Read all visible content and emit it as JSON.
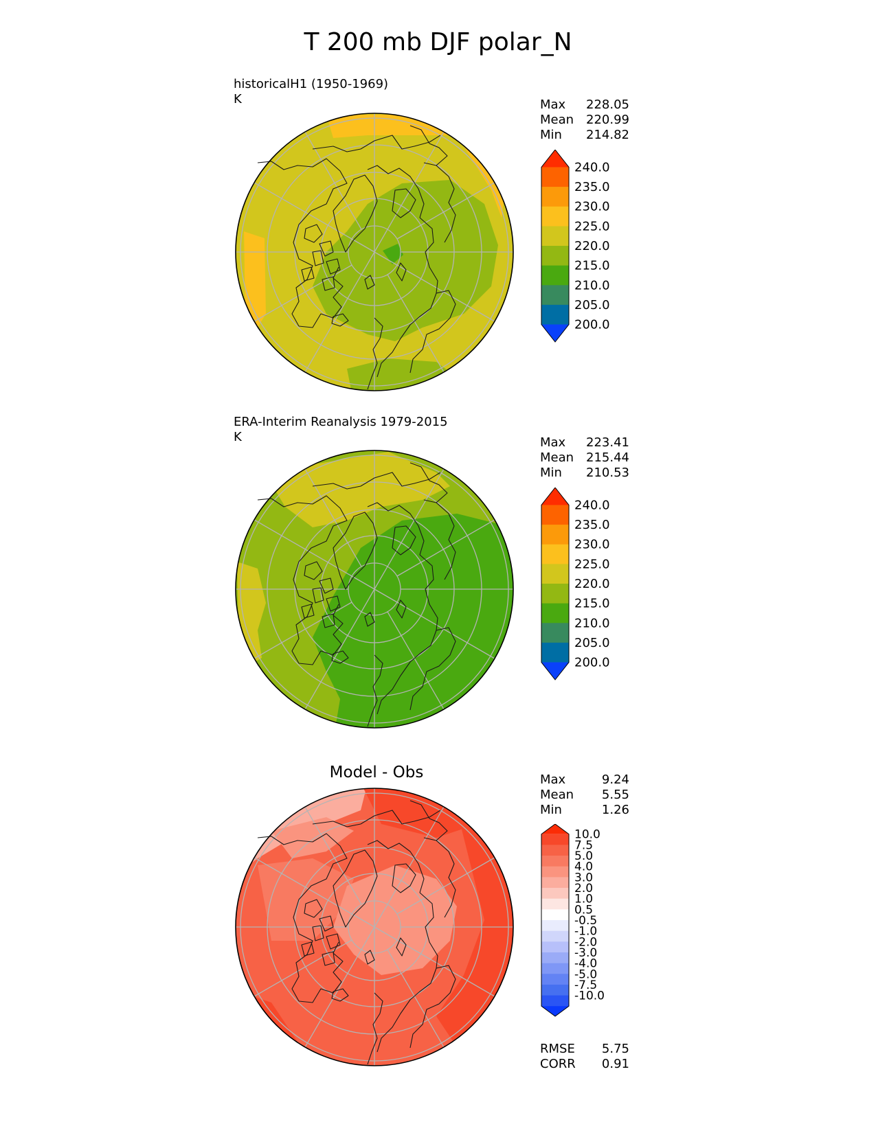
{
  "figure_title": "T 200 mb DJF polar_N",
  "colors": {
    "seq": [
      "#0a41fa",
      "#006ea4",
      "#388a5e",
      "#4aa910",
      "#93b813",
      "#d2c61d",
      "#fcc01d",
      "#fc9a0a",
      "#fd6300",
      "#ff2d00"
    ],
    "diff": [
      "#0a3afc",
      "#2a55f4",
      "#4670f0",
      "#6383f4",
      "#7f97f6",
      "#9aabf7",
      "#b7c0fa",
      "#d0d6fb",
      "#e9ecfd",
      "#ffffff",
      "#fde6e2",
      "#fcc8be",
      "#fbad9e",
      "#fa947f",
      "#f87a61",
      "#f76246",
      "#f7482a",
      "#fb2c06"
    ]
  },
  "panels": [
    {
      "title_line1": "historicalH1 (1950-1969)",
      "title_line2": "K",
      "stats": [
        {
          "label": "Max",
          "value": "228.05"
        },
        {
          "label": "Mean",
          "value": "220.99"
        },
        {
          "label": "Min",
          "value": "214.82"
        }
      ],
      "colorbar_ticks": [
        "240.0",
        "235.0",
        "230.0",
        "225.0",
        "220.0",
        "215.0",
        "210.0",
        "205.0",
        "200.0"
      ]
    },
    {
      "title_line1": "ERA-Interim Reanalysis 1979-2015",
      "title_line2": "K",
      "stats": [
        {
          "label": "Max",
          "value": "223.41"
        },
        {
          "label": "Mean",
          "value": "215.44"
        },
        {
          "label": "Min",
          "value": "210.53"
        }
      ],
      "colorbar_ticks": [
        "240.0",
        "235.0",
        "230.0",
        "225.0",
        "220.0",
        "215.0",
        "210.0",
        "205.0",
        "200.0"
      ]
    },
    {
      "title": "Model - Obs",
      "stats": [
        {
          "label": "Max",
          "value": "9.24"
        },
        {
          "label": "Mean",
          "value": "5.55"
        },
        {
          "label": "Min",
          "value": "1.26"
        }
      ],
      "colorbar_ticks": [
        "10.0",
        "7.5",
        "5.0",
        "4.0",
        "3.0",
        "2.0",
        "1.0",
        "0.5",
        "-0.5",
        "-1.0",
        "-2.0",
        "-3.0",
        "-4.0",
        "-5.0",
        "-7.5",
        "-10.0"
      ],
      "metrics": [
        {
          "label": "RMSE",
          "value": "5.75"
        },
        {
          "label": "CORR",
          "value": "0.91"
        }
      ]
    }
  ],
  "chart_data": [
    {
      "type": "heatmap",
      "projection": "north polar stereographic",
      "title": "historicalH1 (1950-1969)",
      "units": "K",
      "stats": {
        "max": 228.05,
        "mean": 220.99,
        "min": 214.82
      },
      "color_levels": [
        200,
        205,
        210,
        215,
        220,
        225,
        230,
        235,
        240
      ]
    },
    {
      "type": "heatmap",
      "projection": "north polar stereographic",
      "title": "ERA-Interim Reanalysis 1979-2015",
      "units": "K",
      "stats": {
        "max": 223.41,
        "mean": 215.44,
        "min": 210.53
      },
      "color_levels": [
        200,
        205,
        210,
        215,
        220,
        225,
        230,
        235,
        240
      ]
    },
    {
      "type": "heatmap",
      "projection": "north polar stereographic",
      "title": "Model - Obs",
      "stats": {
        "max": 9.24,
        "mean": 5.55,
        "min": 1.26,
        "rmse": 5.75,
        "corr": 0.91
      },
      "color_levels": [
        -10.0,
        -7.5,
        -5.0,
        -4.0,
        -3.0,
        -2.0,
        -1.0,
        -0.5,
        0.5,
        1.0,
        2.0,
        3.0,
        4.0,
        5.0,
        7.5,
        10.0
      ]
    }
  ]
}
